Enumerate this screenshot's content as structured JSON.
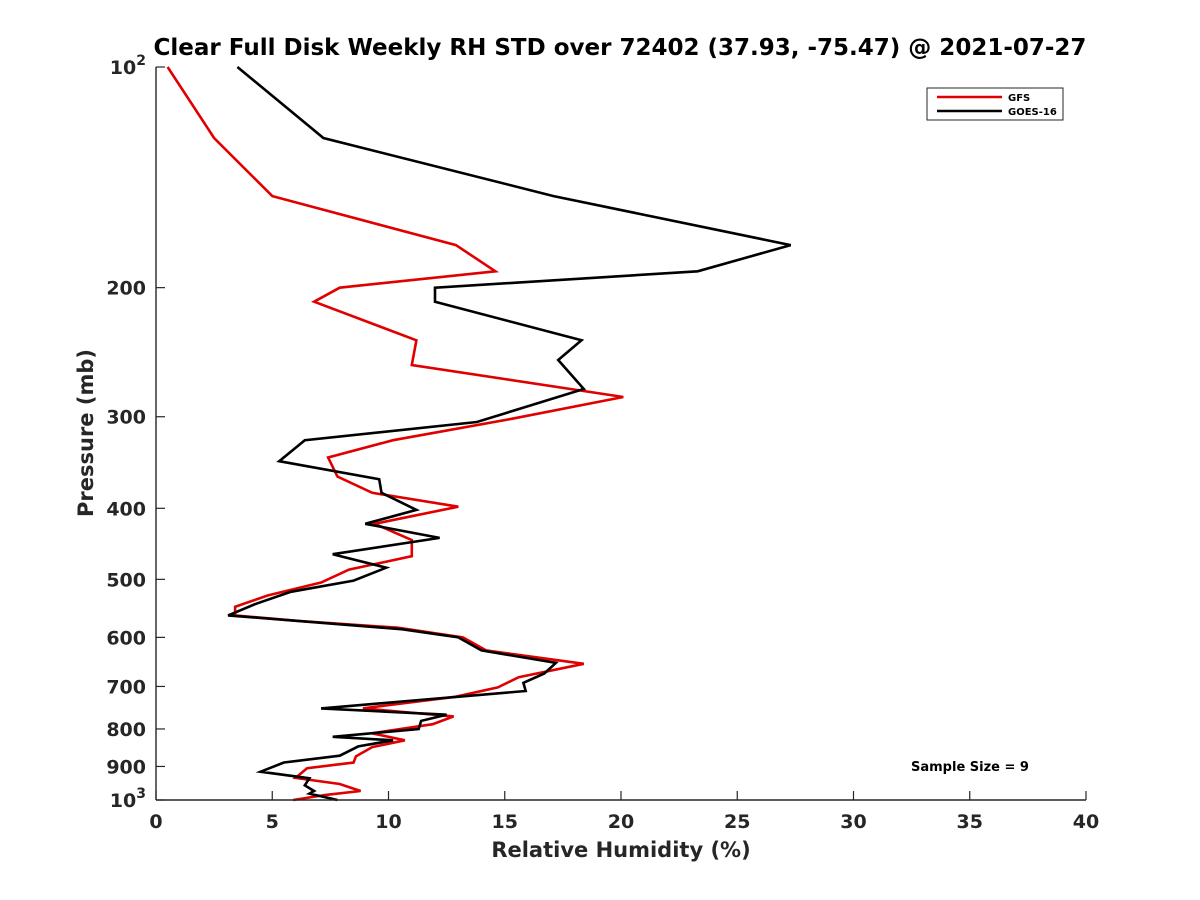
{
  "chart_data": {
    "type": "line",
    "title": "Clear Full Disk Weekly RH STD over 72402 (37.93, -75.47) @ 2021-07-27",
    "xlabel": "Relative Humidity (%)",
    "ylabel": "Pressure (mb)",
    "xlim": [
      0,
      40
    ],
    "ylim": [
      100,
      1000
    ],
    "yscale": "log",
    "yreversed": true,
    "x_ticks": [
      "0",
      "5",
      "10",
      "15",
      "20",
      "25",
      "30",
      "35",
      "40"
    ],
    "y_ticks": [
      {
        "value": 100,
        "base": "10",
        "exp": "2"
      },
      {
        "value": 200,
        "label": "200"
      },
      {
        "value": 300,
        "label": "300"
      },
      {
        "value": 400,
        "label": "400"
      },
      {
        "value": 500,
        "label": "500"
      },
      {
        "value": 600,
        "label": "600"
      },
      {
        "value": 700,
        "label": "700"
      },
      {
        "value": 800,
        "label": "800"
      },
      {
        "value": 900,
        "label": "900"
      },
      {
        "value": 1000,
        "base": "10",
        "exp": "3"
      }
    ],
    "legend_position": "top-right",
    "series": [
      {
        "name": "GFS",
        "color": "#e00000",
        "points": [
          [
            0.5,
            100
          ],
          [
            2.5,
            125
          ],
          [
            5.0,
            150
          ],
          [
            12.9,
            175
          ],
          [
            14.6,
            190
          ],
          [
            7.9,
            200
          ],
          [
            6.8,
            209
          ],
          [
            11.2,
            236
          ],
          [
            11.0,
            255
          ],
          [
            20.1,
            282
          ],
          [
            15.3,
            302
          ],
          [
            10.2,
            323
          ],
          [
            7.4,
            341
          ],
          [
            7.8,
            362
          ],
          [
            9.3,
            381
          ],
          [
            13.0,
            398
          ],
          [
            9.4,
            420
          ],
          [
            11.0,
            442
          ],
          [
            11.0,
            465
          ],
          [
            8.3,
            485
          ],
          [
            7.1,
            505
          ],
          [
            4.8,
            526
          ],
          [
            3.4,
            545
          ],
          [
            3.4,
            560
          ],
          [
            6.2,
            570
          ],
          [
            10.4,
            582
          ],
          [
            13.2,
            600
          ],
          [
            14.2,
            625
          ],
          [
            18.4,
            652
          ],
          [
            15.6,
            680
          ],
          [
            14.7,
            702
          ],
          [
            12.9,
            723
          ],
          [
            8.9,
            750
          ],
          [
            12.8,
            769
          ],
          [
            11.9,
            788
          ],
          [
            9.3,
            811
          ],
          [
            10.7,
            829
          ],
          [
            9.3,
            847
          ],
          [
            8.6,
            872
          ],
          [
            8.5,
            889
          ],
          [
            6.5,
            905
          ],
          [
            6.0,
            933
          ],
          [
            7.9,
            951
          ],
          [
            8.8,
            972
          ],
          [
            7.3,
            984
          ],
          [
            5.9,
            1000
          ]
        ]
      },
      {
        "name": "GOES-16",
        "color": "#000000",
        "points": [
          [
            3.5,
            100
          ],
          [
            7.2,
            125
          ],
          [
            17.1,
            150
          ],
          [
            27.3,
            175
          ],
          [
            23.3,
            190
          ],
          [
            12.0,
            200
          ],
          [
            12.0,
            209
          ],
          [
            18.3,
            236
          ],
          [
            17.3,
            251
          ],
          [
            18.4,
            275
          ],
          [
            13.8,
            305
          ],
          [
            6.4,
            323
          ],
          [
            5.3,
            345
          ],
          [
            9.6,
            365
          ],
          [
            9.7,
            381
          ],
          [
            11.2,
            402
          ],
          [
            9.0,
            420
          ],
          [
            12.2,
            439
          ],
          [
            7.6,
            462
          ],
          [
            9.9,
            482
          ],
          [
            8.5,
            502
          ],
          [
            5.8,
            520
          ],
          [
            4.3,
            540
          ],
          [
            3.1,
            560
          ],
          [
            10.6,
            585
          ],
          [
            13.0,
            600
          ],
          [
            14.0,
            625
          ],
          [
            17.2,
            650
          ],
          [
            16.7,
            672
          ],
          [
            15.8,
            692
          ],
          [
            15.9,
            710
          ],
          [
            7.1,
            750
          ],
          [
            12.5,
            765
          ],
          [
            11.4,
            780
          ],
          [
            11.3,
            800
          ],
          [
            7.6,
            820
          ],
          [
            10.2,
            829
          ],
          [
            8.7,
            845
          ],
          [
            7.9,
            870
          ],
          [
            5.5,
            889
          ],
          [
            4.5,
            915
          ],
          [
            6.6,
            934
          ],
          [
            6.4,
            955
          ],
          [
            6.8,
            972
          ],
          [
            6.6,
            980
          ],
          [
            7.8,
            1000
          ]
        ]
      }
    ],
    "annotation": "Sample Size = 9"
  }
}
